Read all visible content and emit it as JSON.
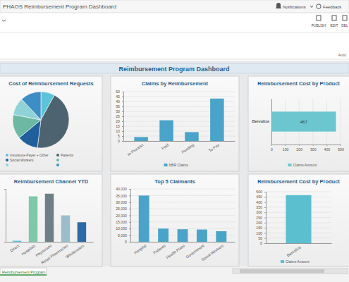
{
  "page": {
    "app_title": "PHAOS Reimbursement Program Dashboard",
    "notifications": "Notifications",
    "feedback": "Feedback",
    "actions": [
      "PUBLISH",
      "EDIT",
      "DEL"
    ],
    "auto": "Auto",
    "dashboard_title": "Reimbursement Program Dashboard",
    "tab": "Reimbursement Program"
  },
  "chart_data": [
    {
      "type": "pie",
      "title": "Cost of Reimbursement Requests",
      "categories": [
        "Insurance Payer + Other",
        "Patients",
        "Social Workers",
        null,
        null,
        null
      ],
      "values": [
        8,
        44,
        12,
        14,
        10,
        12
      ],
      "colors": [
        "#5cc3d9",
        "#4d6370",
        "#1f5f9b",
        "#6db8a3",
        "#8fd3d6",
        "#3e8ec6"
      ],
      "legend": "bottom"
    },
    {
      "type": "bar",
      "title": "Claims by Reimbursement",
      "categories": [
        "In Process",
        "Paid",
        "Pending",
        "To Pay"
      ],
      "series": [
        {
          "name": "NBR Claims",
          "color": "#4aa3c8",
          "values": [
            4,
            21,
            9,
            43
          ]
        }
      ],
      "ylim": [
        0,
        50
      ],
      "yticks": [
        0,
        5,
        10,
        15,
        20,
        25,
        30,
        35,
        40,
        45,
        50
      ],
      "grid": true,
      "legend": "bottom"
    },
    {
      "type": "bar",
      "orientation": "horizontal",
      "title": "Reimbursement Cost by Product",
      "categories": [
        "Benralize"
      ],
      "series": [
        {
          "name": "Claims Amount",
          "color": "#6cc6d0",
          "values": [
            467
          ]
        }
      ],
      "xlim": [
        0,
        500
      ],
      "xticks": [
        0,
        100,
        200,
        300,
        400,
        500
      ],
      "grid": true,
      "data_labels": true,
      "legend": "bottom"
    },
    {
      "type": "bar",
      "title": "Reimbursement Channel YTD",
      "categories": [
        "Direct",
        "Hospitals",
        "Physicians",
        "Retail Pharmacies",
        "Wholesalers"
      ],
      "values": [
        2,
        86,
        91,
        50,
        37
      ],
      "colors": [
        "#5bc0de",
        "#7fc8a9",
        "#6e7f87",
        "#9bbccb",
        "#2b6ca6"
      ],
      "ylim": [
        0,
        100
      ],
      "tick_labels": "x"
    },
    {
      "type": "bar",
      "title": "Top 5 Claimants",
      "categories": [
        "Hospital",
        "Patients",
        "Health Plans",
        "Government",
        "Social Workers"
      ],
      "values": [
        35000,
        10000,
        9500,
        9300,
        8000
      ],
      "color": "#4aa3c8",
      "ylim": [
        0,
        40000
      ],
      "yticks": [
        0,
        {
          "value": 5000,
          "label": "5,000"
        },
        {
          "value": 10000,
          "label": "10,000"
        },
        {
          "value": 15000,
          "label": "15,000"
        },
        {
          "value": 20000,
          "label": "20,000"
        },
        {
          "value": 25000,
          "label": "25,000"
        },
        {
          "value": 30000,
          "label": "30,000"
        },
        {
          "value": 35000,
          "label": "35,000"
        },
        {
          "value": 40000,
          "label": "40,000"
        }
      ],
      "grid": true
    },
    {
      "type": "bar",
      "title": "Reimbursement Cost by Product",
      "categories": [
        "Benralize"
      ],
      "series": [
        {
          "name": "Claims Amount",
          "color": "#5bbfd0",
          "values": [
            467
          ]
        }
      ],
      "ylim": [
        0,
        500
      ],
      "yticks": [
        0,
        50,
        100,
        150,
        200,
        250,
        300,
        350,
        400,
        450,
        500
      ],
      "grid": true,
      "legend": "bottom"
    }
  ]
}
